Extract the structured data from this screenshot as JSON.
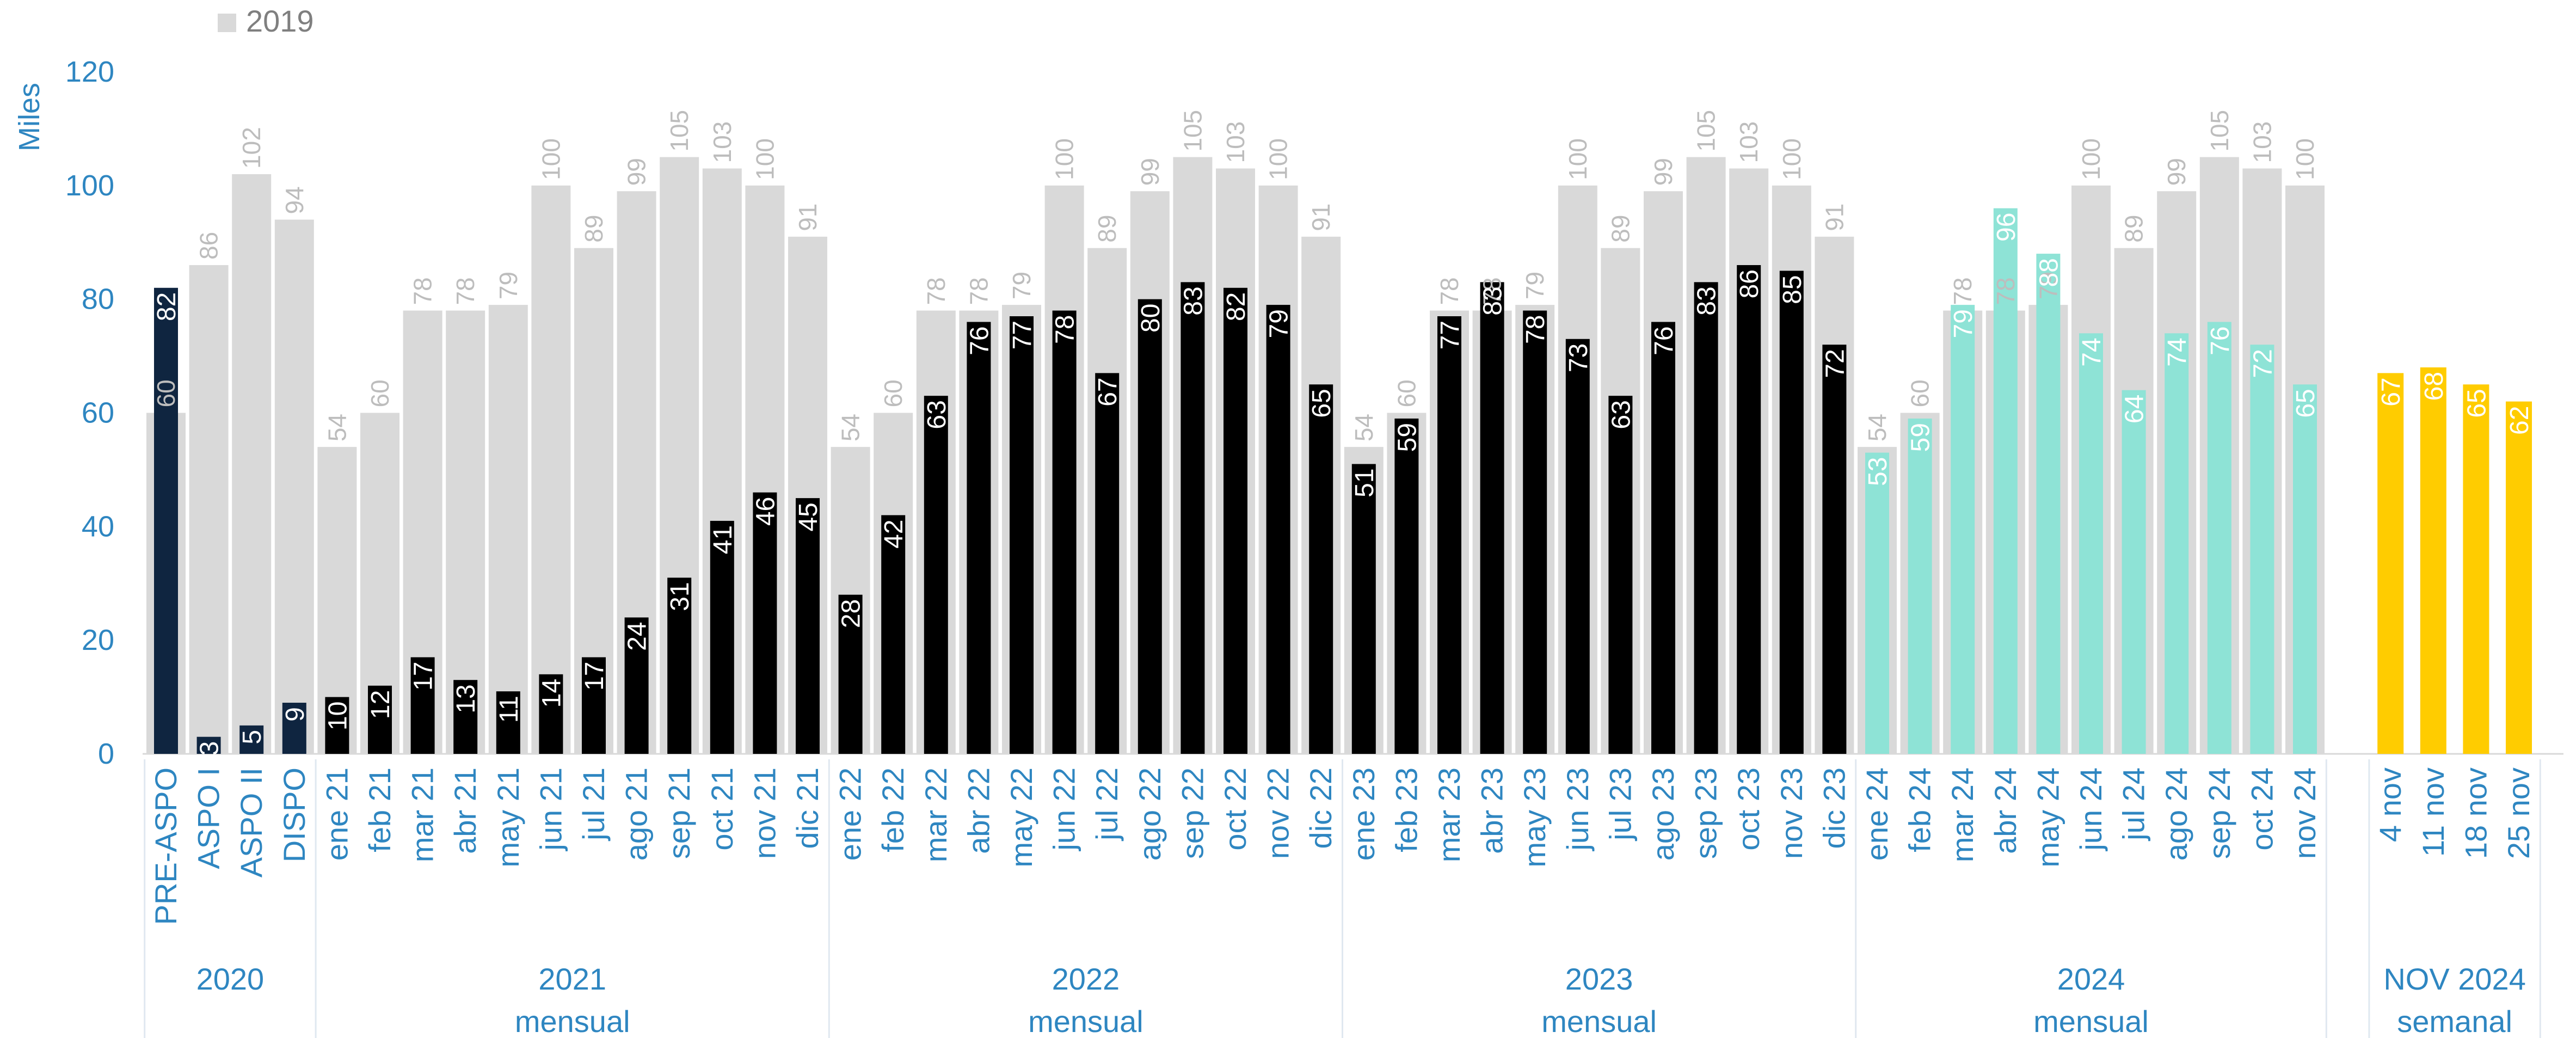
{
  "chart_data": {
    "type": "bar",
    "ylabel": "Miles",
    "ylim": [
      0,
      120
    ],
    "yticks": [
      0,
      20,
      40,
      60,
      80,
      100,
      120
    ],
    "legend": {
      "position": "top-left",
      "entries": [
        {
          "name": "2019",
          "color": "#D9D9D9"
        }
      ]
    },
    "categories": [
      "PRE-ASPO",
      "ASPO I",
      "ASPO II",
      "DISPO",
      "ene 21",
      "feb 21",
      "mar 21",
      "abr 21",
      "may 21",
      "jun 21",
      "jul 21",
      "ago 21",
      "sep 21",
      "oct 21",
      "nov 21",
      "dic 21",
      "ene 22",
      "feb 22",
      "mar 22",
      "abr 22",
      "may 22",
      "jun 22",
      "jul 22",
      "ago 22",
      "sep 22",
      "oct 22",
      "nov 22",
      "dic 22",
      "ene 23",
      "feb 23",
      "mar 23",
      "abr 23",
      "may 23",
      "jun 23",
      "jul 23",
      "ago 23",
      "sep 23",
      "oct 23",
      "nov 23",
      "dic 23",
      "ene 24",
      "feb 24",
      "mar 24",
      "abr 24",
      "may 24",
      "jun 24",
      "jul 24",
      "ago 24",
      "sep 24",
      "oct 24",
      "nov 24",
      "4 nov",
      "11 nov",
      "18 nov",
      "25 nov"
    ],
    "series": [
      {
        "name": "2019",
        "color": "#D9D9D9",
        "values": [
          60,
          86,
          102,
          94,
          54,
          60,
          78,
          78,
          79,
          100,
          89,
          99,
          105,
          103,
          100,
          91,
          54,
          60,
          78,
          78,
          79,
          100,
          89,
          99,
          105,
          103,
          100,
          91,
          54,
          60,
          78,
          78,
          79,
          100,
          89,
          99,
          105,
          103,
          100,
          91,
          54,
          60,
          78,
          78,
          79,
          100,
          89,
          99,
          105,
          103,
          100,
          null,
          null,
          null,
          null
        ]
      },
      {
        "values": [
          82,
          3,
          5,
          9,
          10,
          12,
          17,
          13,
          11,
          14,
          17,
          24,
          31,
          41,
          46,
          45,
          28,
          42,
          63,
          76,
          77,
          78,
          67,
          80,
          83,
          82,
          79,
          65,
          51,
          59,
          77,
          83,
          78,
          73,
          63,
          76,
          83,
          86,
          85,
          72,
          53,
          59,
          79,
          96,
          88,
          74,
          64,
          74,
          76,
          72,
          65,
          67,
          68,
          65,
          62
        ]
      }
    ],
    "segment_colors": [
      "#0F2540",
      "#000000",
      "#000000",
      "#000000",
      "#8EE3D6",
      "#FFCC00"
    ],
    "groups": [
      {
        "year": "2020",
        "sub": "",
        "start": 0,
        "end": 3
      },
      {
        "year": "2021",
        "sub": "mensual",
        "start": 4,
        "end": 15
      },
      {
        "year": "2022",
        "sub": "mensual",
        "start": 16,
        "end": 27
      },
      {
        "year": "2023",
        "sub": "mensual",
        "start": 28,
        "end": 39
      },
      {
        "year": "2024",
        "sub": "mensual",
        "start": 40,
        "end": 50
      },
      {
        "year": "NOV 2024",
        "sub": "semanal",
        "start": 51,
        "end": 54
      }
    ]
  }
}
